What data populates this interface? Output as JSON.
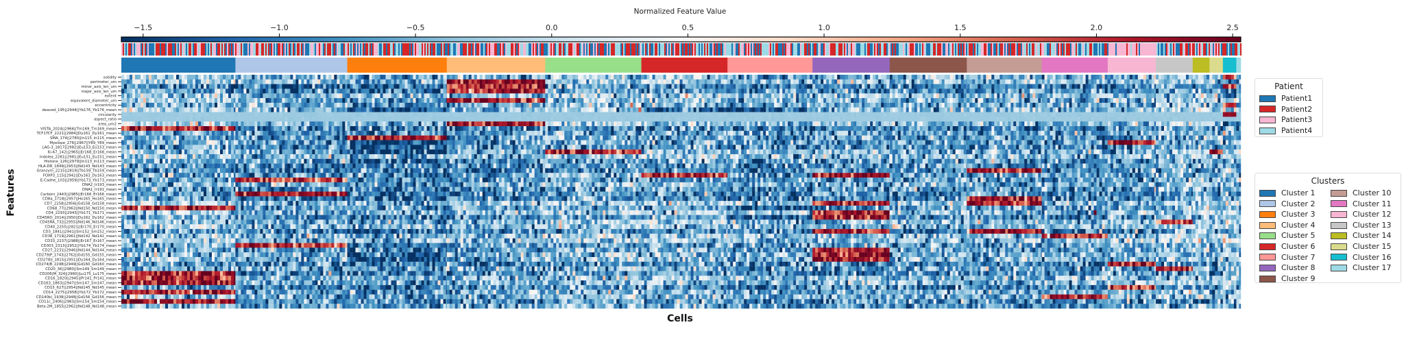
{
  "chart_data": {
    "type": "heatmap",
    "title": "",
    "xlabel": "Cells",
    "ylabel": "Features",
    "colorbar": {
      "label": "Normalized Feature Value",
      "colormap": "RdBu_r",
      "range": [
        -1.58,
        2.53
      ],
      "ticks": [
        -1.5,
        -1.0,
        -0.5,
        0.0,
        0.5,
        1.0,
        1.5,
        2.0,
        2.5
      ],
      "tick_labels": [
        "−1.5",
        "−1.0",
        "−0.5",
        "0.0",
        "0.5",
        "1.0",
        "1.5",
        "2.0",
        "2.5"
      ],
      "placement": "top"
    },
    "features": [
      "solidity",
      "perimeter_um",
      "minor_axis_len_um",
      "major_axis_len_um",
      "extent",
      "equivalent_diameter_um",
      "eccentricity",
      "deaved_195||2944||Yb176_Yb176_mean",
      "circularity",
      "aspect_ratio",
      "area_um2",
      "VISTA_2024||2966||Tm169_Tm169_mean",
      "TCF1TCF_2221||2984||Dy161_Dy161_mean",
      "SMA_174||2780||In115_In115_mean",
      "Myelope_276||2967||Y89_Y89_mean",
      "LAG-3_1817||2982||Eu153_Eu153_mean",
      "Ki-67_142||2965||Er168_Er168_mean",
      "Indolea_2281||2981||Eu151_Eu151_mean",
      "Histone_126||2979||In113_In113_mean",
      "HLA-DR_1849||2953||Nd143_Nd143_mean",
      "Granzym_2215||2819||Tb159_Tb159_mean",
      "FOXP3_115||2942||Dy163_Dy163_mean",
      "E-Cadhe_103||2959||Yb173_Yb173_mean",
      "DNA2_Ir193_mean",
      "DNA1_Ir191_mean",
      "Carboni_2443||2985||Er166_Er166_mean",
      "CD8a_1718||2957||Ho165_Ho165_mean",
      "CD7_2258||2956||Gd158_Gd158_mean",
      "CD68_77||2963||Nd150_Nd150_mean",
      "CD4_2293||2943||Yb171_Yb171_mean",
      "CD45RO_2014||2950||Dy162_Dy162_mean",
      "CD45RA_732||2955||Nd146_Nd146_mean",
      "CD40_2255||2821||Er170_Er170_mean",
      "CD3_1841||2941||Sm152_Sm152_mean",
      "CD38_1719||2961||Nd142_Nd142_mean",
      "CD33_2237||2988||Er167_Er167_mean",
      "CD303_2313||2952||Yb174_Yb174_mean",
      "CD27_2231||2946||Nd144_Nd144_mean",
      "CD279|P_1743||2762||Gd155_Gd155_mean",
      "CD278|I_1815||2951||Dy164_Dy164_mean",
      "CD274|B_2298||2949||Gd160_Gd160_mean",
      "CD20_36||2980||Sm149_Sm149_mean",
      "CD206|M_324||2960||Lu175_Lu175_mean",
      "CD16_1820||2945||Pr141_Pr141_mean",
      "CD163_1863||2947||Sm147_Sm147_mean",
      "CD15_627||2954||Nd145_Nd145_mean",
      "CD14_2275||2958||Yb172_Yb172_mean",
      "CD140b|_1938||2948||Gd156_Gd156_mean",
      "CD11c_2406||2983||Sm154_Sm154_mean",
      "Beta-2M_1855||2962||Nd148_Nd148_mean"
    ],
    "clusters": [
      {
        "name": "Cluster 1",
        "color": "#1f77b4",
        "percent_of_cells": 10.2,
        "high": [
          "VISTA_2024||2966||Tm169_Tm169_mean",
          "CD68_77||2963||Nd150_Nd150_mean",
          "CD206|M_324||2960||Lu175_Lu175_mean",
          "CD16_1820||2945||Pr141_Pr141_mean",
          "CD163_1863||2947||Sm147_Sm147_mean",
          "CD14_2275||2958||Yb172_Yb172_mean",
          "CD11c_2406||2983||Sm154_Sm154_mean"
        ],
        "low": []
      },
      {
        "name": "Cluster 2",
        "color": "#aec7e8",
        "percent_of_cells": 10.0,
        "high": [
          "E-Cadhe_103||2959||Yb173_Yb173_mean",
          "Carboni_2443||2985||Er166_Er166_mean",
          "CD303_2313||2952||Yb174_Yb174_mean"
        ],
        "low": []
      },
      {
        "name": "Cluster 3",
        "color": "#ff7f0e",
        "percent_of_cells": 8.9,
        "high": [
          "SMA_174||2780||In115_In115_mean"
        ],
        "low": [
          "deaved_195||2944||Yb176_Yb176_mean",
          "Myelope_276||2967||Y89_Y89_mean",
          "Ki-67_142||2965||Er168_Er168_mean",
          "Histone_126||2979||In113_In113_mean",
          "CD303_2313||2952||Yb174_Yb174_mean",
          "CD279|P_1743||2762||Gd155_Gd155_mean",
          "CD278|I_1815||2951||Dy164_Dy164_mean"
        ]
      },
      {
        "name": "Cluster 4",
        "color": "#ffbb78",
        "percent_of_cells": 8.8,
        "high": [
          "perimeter_um",
          "minor_axis_len_um",
          "major_axis_len_um",
          "equivalent_diameter_um",
          "area_um2"
        ],
        "low": []
      },
      {
        "name": "Cluster 5",
        "color": "#98df8a",
        "percent_of_cells": 8.6,
        "high": [
          "Ki-67_142||2965||Er168_Er168_mean"
        ],
        "low": []
      },
      {
        "name": "Cluster 6",
        "color": "#d62728",
        "percent_of_cells": 7.7,
        "high": [
          "FOXP3_115||2942||Dy163_Dy163_mean"
        ],
        "low": [
          "deaved_195||2944||Yb176_Yb176_mean"
        ]
      },
      {
        "name": "Cluster 7",
        "color": "#ff9896",
        "percent_of_cells": 7.6,
        "high": [],
        "low": [
          "deaved_195||2944||Yb176_Yb176_mean",
          "CD68_77||2963||Nd150_Nd150_mean",
          "CD45RO_2014||2950||Dy162_Dy162_mean"
        ]
      },
      {
        "name": "Cluster 8",
        "color": "#9467bd",
        "percent_of_cells": 6.9,
        "high": [
          "FOXP3_115||2942||Dy163_Dy163_mean",
          "CD7_2258||2956||Gd158_Gd158_mean",
          "CD4_2293||2943||Yb171_Yb171_mean",
          "CD45RO_2014||2950||Dy162_Dy162_mean",
          "CD3_1841||2941||Sm152_Sm152_mean",
          "CD27_2231||2946||Nd144_Nd144_mean",
          "CD279|P_1743||2762||Gd155_Gd155_mean",
          "CD278|I_1815||2951||Dy164_Dy164_mean"
        ],
        "low": []
      },
      {
        "name": "Cluster 9",
        "color": "#8c564b",
        "percent_of_cells": 6.9,
        "high": [],
        "low": []
      },
      {
        "name": "Cluster 10",
        "color": "#c49c94",
        "percent_of_cells": 6.7,
        "high": [
          "Granzym_2215||2819||Tb159_Tb159_mean",
          "CD8a_1718||2957||Ho165_Ho165_mean",
          "CD7_2258||2956||Gd158_Gd158_mean",
          "CD3_1841||2941||Sm152_Sm152_mean"
        ],
        "low": []
      },
      {
        "name": "Cluster 11",
        "color": "#e377c2",
        "percent_of_cells": 5.9,
        "high": [
          "CD38_1719||2961||Nd142_Nd142_mean",
          "CD140b|_1938||2948||Gd156_Gd156_mean"
        ],
        "low": []
      },
      {
        "name": "Cluster 12",
        "color": "#f7b6d2",
        "percent_of_cells": 4.3,
        "high": [
          "Myelope_276||2967||Y89_Y89_mean",
          "CD15_627||2954||Nd145_Nd145_mean",
          "CD274|B_2298||2949||Gd160_Gd160_mean"
        ],
        "low": []
      },
      {
        "name": "Cluster 13",
        "color": "#c7c7c7",
        "percent_of_cells": 3.3,
        "high": [
          "CD45RA_732||2955||Nd146_Nd146_mean",
          "CD20_36||2980||Sm149_Sm149_mean"
        ],
        "low": []
      },
      {
        "name": "Cluster 14",
        "color": "#bcbd22",
        "percent_of_cells": 1.5,
        "high": [],
        "low": [
          "CD11c_2406||2983||Sm154_Sm154_mean"
        ]
      },
      {
        "name": "Cluster 15",
        "color": "#dbdb8d",
        "percent_of_cells": 1.2,
        "high": [
          "Ki-67_142||2965||Er168_Er168_mean"
        ],
        "low": []
      },
      {
        "name": "Cluster 16",
        "color": "#17becf",
        "percent_of_cells": 1.2,
        "high": [
          "solidity",
          "minor_axis_len_um",
          "eccentricity",
          "circularity"
        ],
        "low": [
          "perimeter_um",
          "major_axis_len_um",
          "extent",
          "area_um2"
        ]
      },
      {
        "name": "Cluster 17",
        "color": "#9edae5",
        "percent_of_cells": 0.4,
        "high": [],
        "low": []
      }
    ],
    "patients": [
      {
        "name": "Patient1",
        "color": "#1f77b4"
      },
      {
        "name": "Patient2",
        "color": "#d62728"
      },
      {
        "name": "Patient3",
        "color": "#f7b6d2"
      },
      {
        "name": "Patient4",
        "color": "#9edae5"
      }
    ],
    "legends": {
      "patient_title": "Patient",
      "patient_placement": "right",
      "cluster_title": "Clusters",
      "cluster_placement": "right"
    }
  }
}
